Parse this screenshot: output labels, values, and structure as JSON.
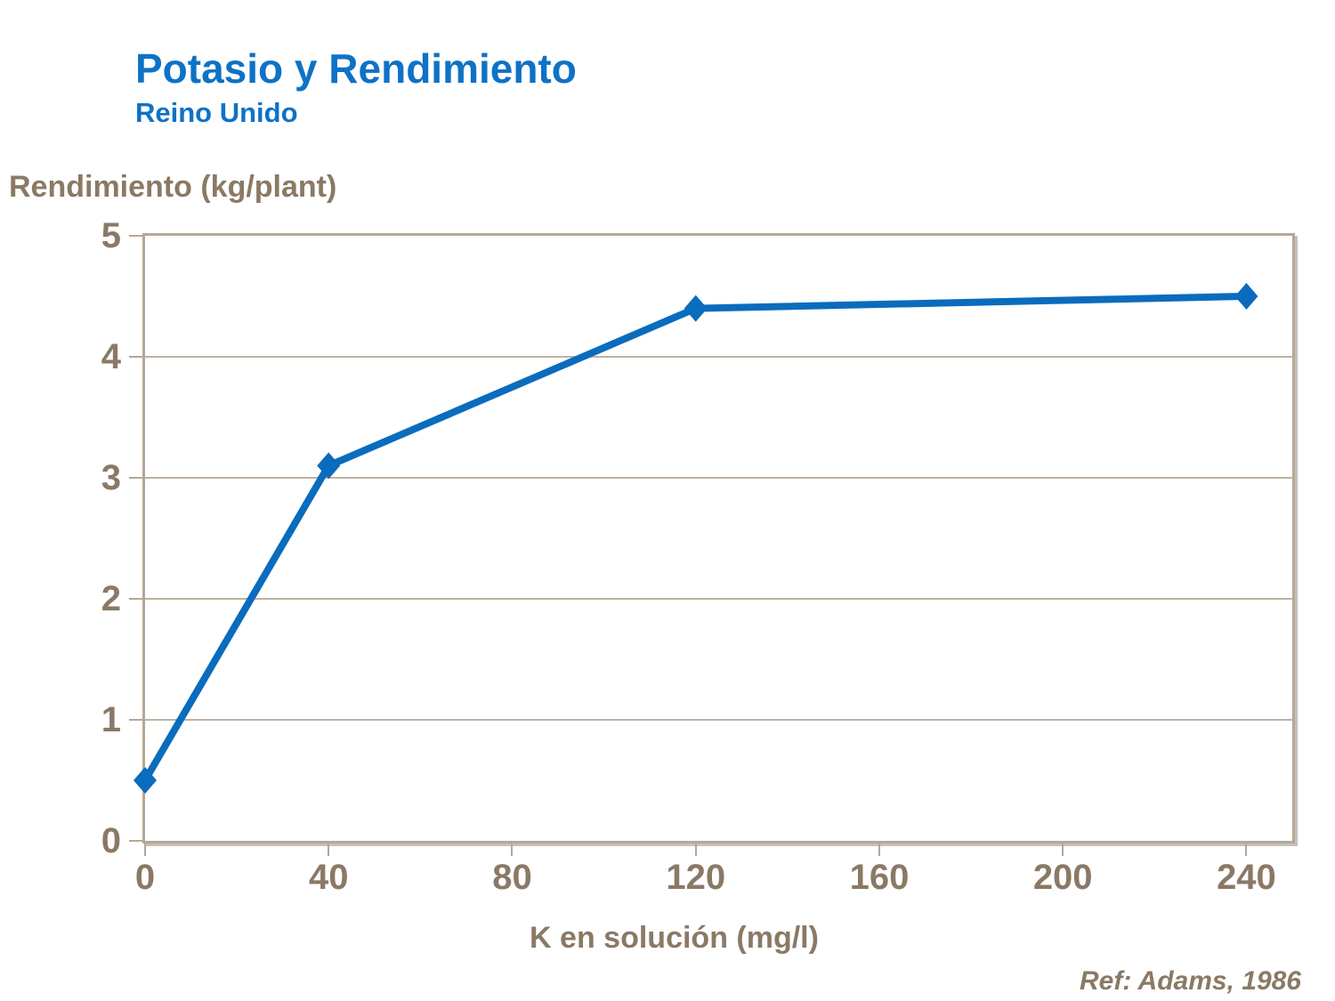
{
  "title": "Potasio y Rendimiento",
  "subtitle": "Reino Unido",
  "reference": "Ref: Adams, 1986",
  "colors": {
    "title_blue": "#0E72C6",
    "line_blue": "#0A6CBD",
    "text_brown": "#8A7965",
    "frame_tan": "#B5A797",
    "grid_tan": "#BFB2A2",
    "background": "#FFFFFF"
  },
  "chart_data": {
    "type": "line",
    "title": "Potasio y Rendimiento",
    "subtitle": "Reino Unido",
    "xlabel": "K en solución (mg/l)",
    "ylabel": "Rendimiento (kg/plant)",
    "x": [
      0,
      40,
      120,
      240
    ],
    "y": [
      0.5,
      3.1,
      4.4,
      4.5
    ],
    "xticks": [
      0,
      40,
      80,
      120,
      160,
      200,
      240
    ],
    "yticks": [
      0,
      1,
      2,
      3,
      4,
      5
    ],
    "xlim": [
      0,
      250
    ],
    "ylim": [
      0,
      5
    ],
    "grid": "horizontal-at-integer-y",
    "legend": "none",
    "marker": "diamond",
    "line_width": 8,
    "annotation": "Ref: Adams, 1986"
  }
}
